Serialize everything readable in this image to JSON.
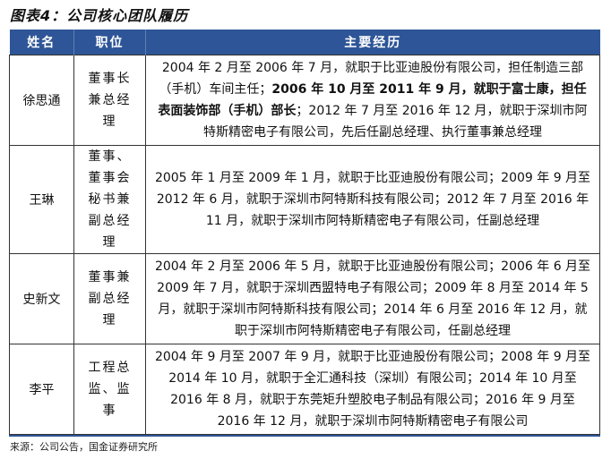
{
  "title": "图表4：公司核心团队履历",
  "header": {
    "name": "姓名",
    "position": "职位",
    "experience": "主要经历"
  },
  "header_color": "#2E5597",
  "rows": [
    {
      "name": "徐思通",
      "position": "董事长兼总经理",
      "experience": [
        {
          "text": "2004 年 2 月至 2006 年 7 月，就职于比亚迪股份有限公司，担任制造三部（手机）车间主任；",
          "bold": false
        },
        {
          "text": "2006 年 10 月至 2011 年 9 月，就职于富士康，担任表面装饰部（手机）部长",
          "bold": true
        },
        {
          "text": "；2012 年 7 月至 2016 年 12 月，就职于深圳市阿特斯精密电子有限公司，先后任副总经理、执行董事兼总经理",
          "bold": false
        }
      ]
    },
    {
      "name": "王琳",
      "position": "董事、董事会秘书兼副总经理",
      "experience": [
        {
          "text": "2005 年 1 月至 2009 年 1 月，就职于比亚迪股份有限公司；2009 年 9 月至 2012 年 6 月，就职于深圳市阿特斯科技有限公司；2012 年 7 月至 2016 年 11 月，就职于深圳市阿特斯精密电子有限公司，任副总经理",
          "bold": false
        }
      ]
    },
    {
      "name": "史新文",
      "position": "董事兼副总经理",
      "experience": [
        {
          "text": "2004 年 2 月至 2006 年 5 月，就职于比亚迪股份有限公司；2006 年 6 月至 2009 年 7 月，就职于深圳西盟特电子有限公司；2009 年 8 月至 2014 年 5 月，就职于深圳市阿特斯科技有限公司；2014 年 6 月至 2016 年 12 月，就职于深圳市阿特斯精密电子有限公司，任副总经理",
          "bold": false
        }
      ]
    },
    {
      "name": "李平",
      "position": "工程总监、监事",
      "experience": [
        {
          "text": "2004 年 9 月至 2007 年 9 月，就职于比亚迪股份有限公司；2008 年 9 月至 2014 年 10 月，就职于全汇通科技（深圳）有限公司；2014 年 10 月至 2016 年 8 月，就职于东莞矩升塑胶电子制品有限公司；2016 年 9 月至 2016 年 12 月，就职于深圳市阿特斯精密电子有限公司",
          "bold": false
        }
      ]
    }
  ],
  "source": "来源：公司公告，国金证券研究所"
}
